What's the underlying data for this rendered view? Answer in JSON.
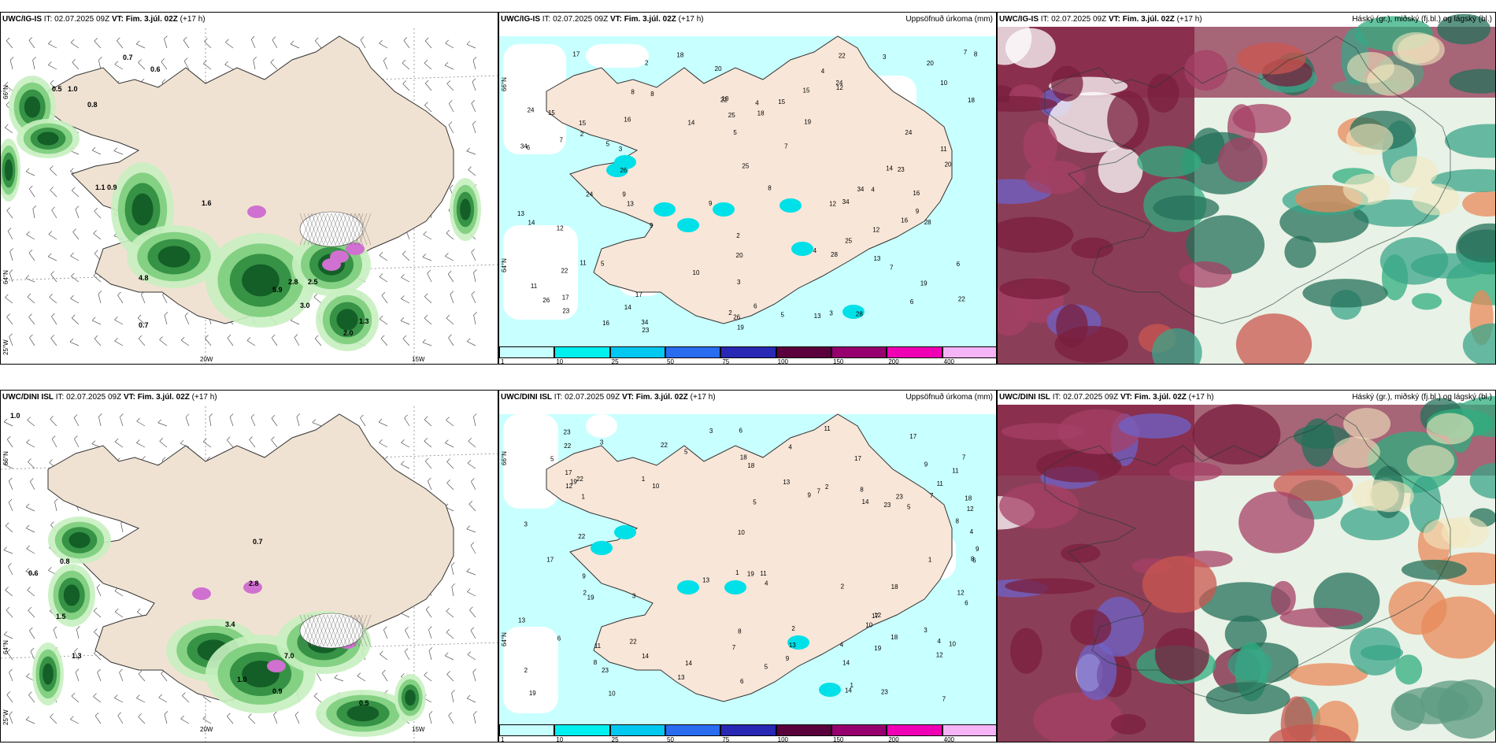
{
  "rows": [
    {
      "model": "UWC/IG-IS",
      "panels": [
        {
          "model": "UWC/IG-IS",
          "it_label": "IT:",
          "it_value": "02.07.2025 09Z",
          "vt_label": "VT:",
          "vt_value": "Fim. 3.júl. 02Z",
          "lead": "(+17 h)",
          "right_title": ""
        },
        {
          "model": "UWC/IG-IS",
          "it_label": "IT:",
          "it_value": "02.07.2025 09Z",
          "vt_label": "VT:",
          "vt_value": "Fim. 3.júl. 02Z",
          "lead": "(+17 h)",
          "right_title": "Uppsöfnuð úrkoma (mm)"
        },
        {
          "model": "UWC/IG-IS",
          "it_label": "IT:",
          "it_value": "02.07.2025 09Z",
          "vt_label": "VT:",
          "vt_value": "Fim. 3.júl. 02Z",
          "lead": "(+17 h)",
          "right_title": "Háský (gr.), miðský (fj.bl.) og lágský (bl.)"
        }
      ]
    },
    {
      "model": "UWC/DINI ISL",
      "panels": [
        {
          "model": "UWC/DINI ISL",
          "it_label": "IT:",
          "it_value": "02.07.2025 09Z",
          "vt_label": "VT:",
          "vt_value": "Fim. 3.júl. 02Z",
          "lead": "(+17 h)",
          "right_title": ""
        },
        {
          "model": "UWC/DINI ISL",
          "it_label": "IT:",
          "it_value": "02.07.2025 09Z",
          "vt_label": "VT:",
          "vt_value": "Fim. 3.júl. 02Z",
          "lead": "(+17 h)",
          "right_title": "Uppsöfnuð úrkoma (mm)"
        },
        {
          "model": "UWC/DINI ISL",
          "it_label": "IT:",
          "it_value": "02.07.2025 09Z",
          "vt_label": "VT:",
          "vt_value": "Fim. 3.júl. 02Z",
          "lead": "(+17 h)",
          "right_title": "Háský (gr.), miðský (fj.bl.) og lágský (bl.)"
        }
      ]
    }
  ],
  "grid_labels": {
    "lat_66": "66°N",
    "lat_64": "64°N",
    "lon_25": "25°W",
    "lon_20": "20W",
    "lon_15": "15W"
  },
  "colorbar": {
    "ticks": [
      "1",
      "10",
      "25",
      "50",
      "75",
      "100",
      "150",
      "200",
      "400"
    ],
    "colors": [
      "#c8ffff",
      "#00f0f0",
      "#00c8f0",
      "#2a6cf0",
      "#2828b4",
      "#5a003c",
      "#96006e",
      "#f000b4",
      "#f5b4f5"
    ]
  },
  "precip_values_top": [
    "3",
    "5",
    "6",
    "7",
    "9",
    "8",
    "2",
    "4",
    "13",
    "12",
    "16",
    "14",
    "15",
    "24",
    "34",
    "22",
    "20",
    "23",
    "19",
    "10",
    "25",
    "26",
    "28",
    "11",
    "18",
    "17"
  ],
  "precip_values_bottom": [
    "2",
    "4",
    "1",
    "5",
    "3",
    "9",
    "12",
    "17",
    "19",
    "22",
    "23",
    "11",
    "10",
    "13",
    "14",
    "18",
    "7",
    "6",
    "8"
  ],
  "rain_values_top": [
    "0.7",
    "0.6",
    "0.5",
    "1.0",
    "0.8",
    "0.9",
    "1.1",
    "1.6",
    "4.8",
    "5.9",
    "2.5",
    "3.0",
    "2.8",
    "1.3",
    "2.0",
    "0.7"
  ],
  "rain_values_bottom": [
    "1.0",
    "0.6",
    "0.8",
    "1.5",
    "1.3",
    "0.7",
    "3.4",
    "7.0",
    "1.0",
    "0.9",
    "2.8",
    "0.5"
  ]
}
